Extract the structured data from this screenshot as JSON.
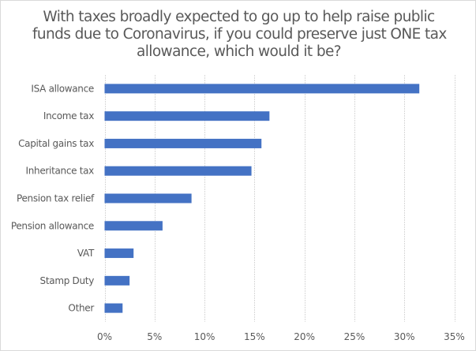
{
  "chart_data": {
    "type": "bar",
    "orientation": "horizontal",
    "title_lines": [
      "With taxes broadly expected to go up to help raise public",
      "funds due to Coronavirus, if you could preserve just ONE tax",
      "allowance, which would it be?"
    ],
    "title": "With taxes broadly expected to go up to help raise public funds due to Coronavirus, if you could preserve just ONE tax allowance, which would it be?",
    "categories": [
      "ISA allowance",
      "Income tax",
      "Capital gains tax",
      "Inheritance tax",
      "Pension tax relief",
      "Pension allowance",
      "VAT",
      "Stamp Duty",
      "Other"
    ],
    "values": [
      31.5,
      16.5,
      15.7,
      14.7,
      8.7,
      5.8,
      2.9,
      2.5,
      1.8
    ],
    "value_unit": "%",
    "xlabel": "",
    "ylabel": "",
    "xlim": [
      0,
      35
    ],
    "x_ticks": [
      0,
      5,
      10,
      15,
      20,
      25,
      30,
      35
    ],
    "x_tick_labels": [
      "0%",
      "5%",
      "10%",
      "15%",
      "20%",
      "25%",
      "30%",
      "35%"
    ],
    "grid": "vertical",
    "legend": "none",
    "bar_color": "#4472C4",
    "grid_color": "#d9d9d9",
    "text_color": "#595959"
  }
}
